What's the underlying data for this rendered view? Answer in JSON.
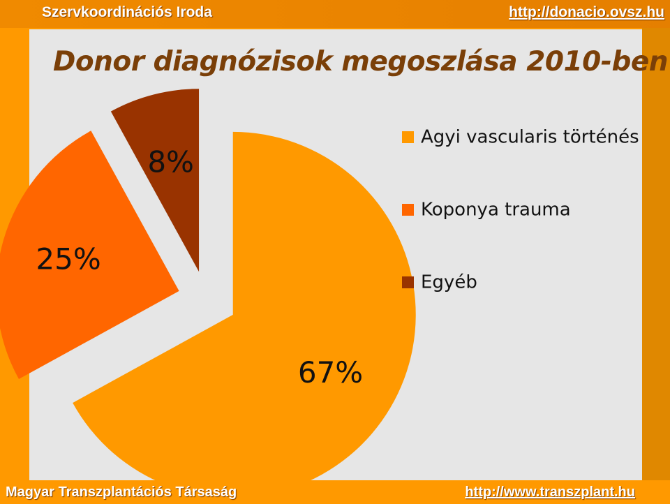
{
  "header": {
    "org": "Szervkoordinációs Iroda",
    "link": "http://donacio.ovsz.hu"
  },
  "footer": {
    "org": "Magyar Transzplantációs Társaság",
    "link": "http://www.transzplant.hu"
  },
  "colors": {
    "frame": "#ff9900",
    "content_bg": "#e6e6e6",
    "title": "#7a3f08"
  },
  "chart_data": {
    "type": "pie",
    "title": "Donor diagnózisok megoszlása 2010-ben",
    "labels": [
      "Agyi vascularis történés",
      "Koponya trauma",
      "Egyéb"
    ],
    "values": [
      67,
      25,
      8
    ],
    "value_labels": [
      "67%",
      "25%",
      "8%"
    ],
    "colors": [
      "#ff9900",
      "#ff6600",
      "#993300"
    ],
    "exploded": true,
    "legend_position": "right"
  }
}
